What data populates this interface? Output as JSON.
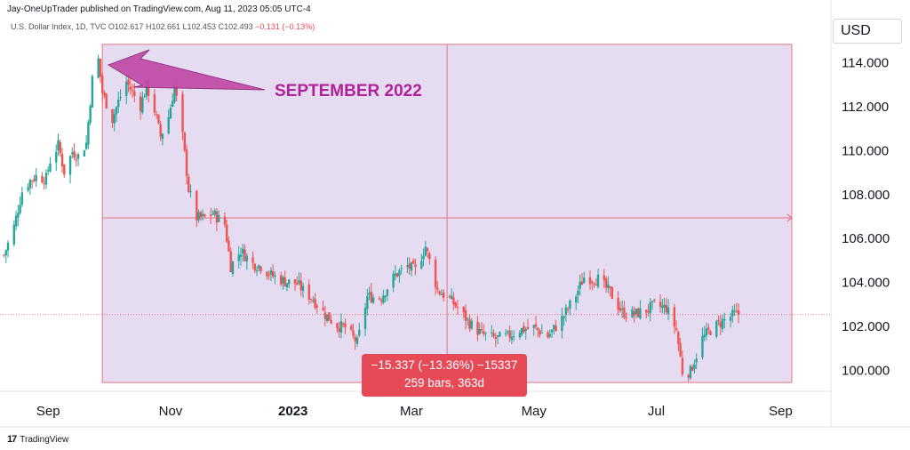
{
  "header": {
    "publisher": "Jay-OneUpTrader published on TradingView.com, Aug 11, 2023 05:05 UTC-4",
    "symbol": "U.S. Dollar Index, 1D, TVC",
    "ohlc": {
      "o": "O102.617",
      "h": "H102.661",
      "l": "L102.453",
      "c": "C102.493",
      "chg": "−0.131 (−0.13%)"
    }
  },
  "currency": "USD",
  "footer": {
    "logo": "17",
    "brand": "TradingView"
  },
  "annotation": {
    "text": "SEPTEMBER 2022"
  },
  "measure": {
    "line1": "−15.337 (−13.36%) −15337",
    "line2": "259 bars, 363d",
    "start_date": "2022-09-28",
    "start_price": 114.8,
    "end_price": 99.4,
    "mid_price": 106.9
  },
  "colors": {
    "up": "#26a69a",
    "down": "#ef5350",
    "measure_fill": "#e6dcf2",
    "measure_border": "#e57380",
    "arrow_fill": "#c14aa8",
    "annotation": "#b0209a"
  },
  "chart_data": {
    "type": "candlestick",
    "x_ticks": [
      {
        "label": "Sep",
        "date": "2022-09-01"
      },
      {
        "label": "Nov",
        "date": "2022-11-01"
      },
      {
        "label": "2023",
        "date": "2023-01-01"
      },
      {
        "label": "Mar",
        "date": "2023-03-01"
      },
      {
        "label": "May",
        "date": "2023-05-01"
      },
      {
        "label": "Jul",
        "date": "2023-07-01"
      },
      {
        "label": "Sep",
        "date": "2023-09-01"
      }
    ],
    "y_ticks": [
      "114.000",
      "112.000",
      "110.000",
      "108.000",
      "106.000",
      "104.000",
      "102.000",
      "100.000"
    ],
    "ylim": [
      99.0,
      115.2
    ],
    "last_close": 102.493,
    "closes": [
      [
        "2022-08-10",
        105.2
      ],
      [
        "2022-08-15",
        106.5
      ],
      [
        "2022-08-19",
        108.1
      ],
      [
        "2022-08-23",
        108.6
      ],
      [
        "2022-08-26",
        108.8
      ],
      [
        "2022-08-29",
        108.7
      ],
      [
        "2022-08-31",
        108.7
      ],
      [
        "2022-09-02",
        109.5
      ],
      [
        "2022-09-06",
        110.2
      ],
      [
        "2022-09-09",
        109.0
      ],
      [
        "2022-09-13",
        109.9
      ],
      [
        "2022-09-16",
        109.7
      ],
      [
        "2022-09-20",
        110.3
      ],
      [
        "2022-09-23",
        113.2
      ],
      [
        "2022-09-26",
        114.1
      ],
      [
        "2022-09-28",
        112.6
      ],
      [
        "2022-10-03",
        111.4
      ],
      [
        "2022-10-06",
        112.2
      ],
      [
        "2022-10-10",
        113.1
      ],
      [
        "2022-10-13",
        112.6
      ],
      [
        "2022-10-17",
        112.0
      ],
      [
        "2022-10-20",
        112.9
      ],
      [
        "2022-10-24",
        111.8
      ],
      [
        "2022-10-27",
        110.6
      ],
      [
        "2022-10-31",
        111.5
      ],
      [
        "2022-11-03",
        112.9
      ],
      [
        "2022-11-07",
        110.6
      ],
      [
        "2022-11-10",
        108.2
      ],
      [
        "2022-11-14",
        106.9
      ],
      [
        "2022-11-18",
        106.9
      ],
      [
        "2022-11-22",
        107.1
      ],
      [
        "2022-11-28",
        106.6
      ],
      [
        "2022-12-01",
        104.7
      ],
      [
        "2022-12-06",
        105.4
      ],
      [
        "2022-12-12",
        104.8
      ],
      [
        "2022-12-16",
        104.7
      ],
      [
        "2022-12-21",
        104.3
      ],
      [
        "2022-12-28",
        104.0
      ],
      [
        "2023-01-03",
        103.9
      ],
      [
        "2023-01-06",
        103.6
      ],
      [
        "2023-01-11",
        103.2
      ],
      [
        "2023-01-17",
        102.5
      ],
      [
        "2023-01-23",
        102.0
      ],
      [
        "2023-01-27",
        101.9
      ],
      [
        "2023-02-02",
        101.2
      ],
      [
        "2023-02-07",
        103.3
      ],
      [
        "2023-02-14",
        103.3
      ],
      [
        "2023-02-21",
        104.3
      ],
      [
        "2023-02-27",
        104.7
      ],
      [
        "2023-03-03",
        104.5
      ],
      [
        "2023-03-08",
        105.6
      ],
      [
        "2023-03-14",
        103.6
      ],
      [
        "2023-03-20",
        103.2
      ],
      [
        "2023-03-24",
        102.8
      ],
      [
        "2023-03-30",
        102.1
      ],
      [
        "2023-04-05",
        101.6
      ],
      [
        "2023-04-12",
        101.4
      ],
      [
        "2023-04-18",
        101.5
      ],
      [
        "2023-04-24",
        101.8
      ],
      [
        "2023-05-01",
        101.9
      ],
      [
        "2023-05-08",
        101.5
      ],
      [
        "2023-05-15",
        102.3
      ],
      [
        "2023-05-22",
        103.4
      ],
      [
        "2023-05-26",
        104.2
      ],
      [
        "2023-06-02",
        104.1
      ],
      [
        "2023-06-08",
        103.5
      ],
      [
        "2023-06-14",
        102.6
      ],
      [
        "2023-06-20",
        102.5
      ],
      [
        "2023-06-26",
        102.7
      ],
      [
        "2023-06-30",
        102.9
      ],
      [
        "2023-07-06",
        102.8
      ],
      [
        "2023-07-11",
        101.8
      ],
      [
        "2023-07-14",
        99.9
      ],
      [
        "2023-07-18",
        99.9
      ],
      [
        "2023-07-24",
        101.4
      ],
      [
        "2023-07-28",
        101.8
      ],
      [
        "2023-08-03",
        102.2
      ],
      [
        "2023-08-09",
        102.5
      ],
      [
        "2023-08-11",
        102.5
      ]
    ]
  }
}
